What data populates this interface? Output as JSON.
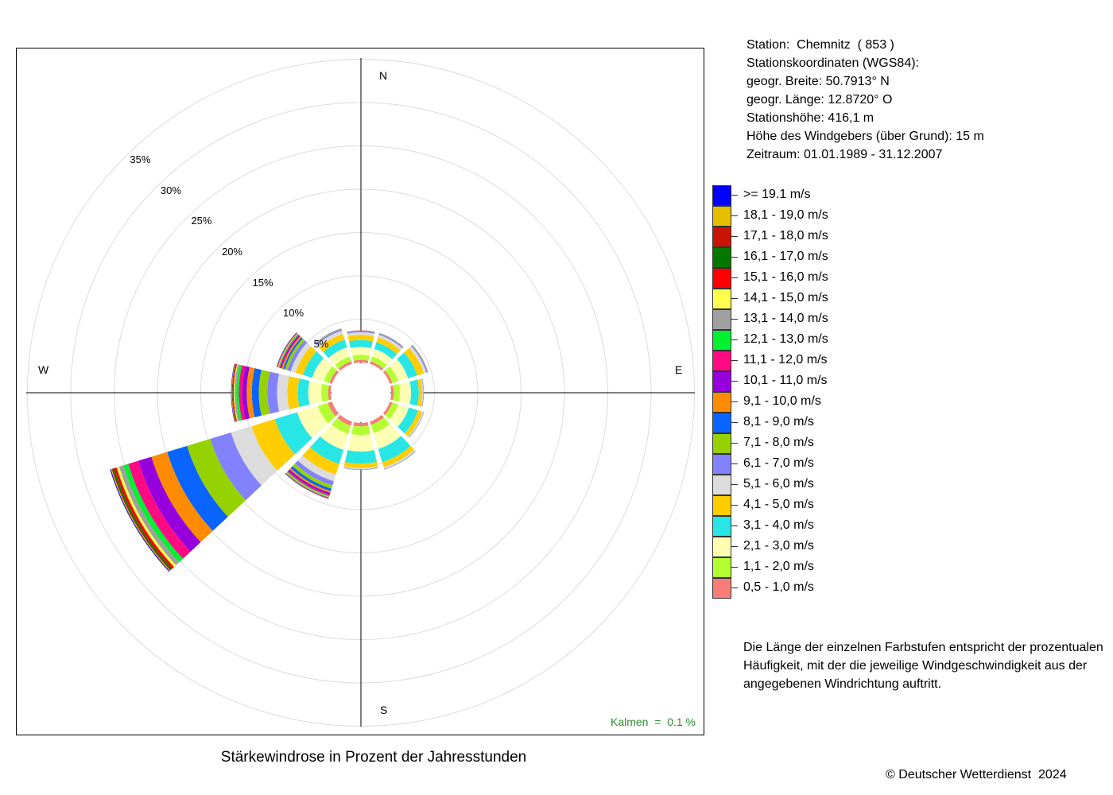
{
  "station": {
    "lines": [
      "Station:  Chemnitz  ( 853 )",
      "Stationskoordinaten (WGS84):",
      "geogr. Breite: 50.7913° N",
      "geogr. Länge: 12.8720° O",
      "Stationshöhe: 416,1 m",
      "Höhe des Windgebers (über Grund): 15 m",
      "Zeitraum: 01.01.1989 - 31.12.2007"
    ]
  },
  "title": "Stärkewindrose in Prozent der Jahresstunden",
  "calm_label": "Kalmen  =  0.1 %",
  "note": "Die Länge der einzelnen Farbstufen entspricht der prozentualen Häufigkeit, mit der die jeweilige Windgeschwindigkeit aus der angegebenen Windrichtung auftritt.",
  "copyright": "© Deutscher Wetterdienst  2024",
  "compass": {
    "n": "N",
    "e": "E",
    "s": "S",
    "w": "W"
  },
  "chart_data": {
    "type": "windrose",
    "unit": "%",
    "calm_percent": 0.1,
    "ring_labels": [
      "5%",
      "10%",
      "15%",
      "20%",
      "25%",
      "30%",
      "35%"
    ],
    "ring_values": [
      5,
      10,
      15,
      20,
      25,
      30,
      35
    ],
    "directions_deg": [
      0,
      30,
      60,
      90,
      120,
      150,
      180,
      210,
      240,
      270,
      300,
      330
    ],
    "classes": [
      {
        "label": "0,5 - 1,0 m/s",
        "color": "#f77d78"
      },
      {
        "label": "1,1 - 2,0 m/s",
        "color": "#b4ff32"
      },
      {
        "label": "2,1 - 3,0 m/s",
        "color": "#ffffb4"
      },
      {
        "label": "3,1 - 4,0 m/s",
        "color": "#28e6e6"
      },
      {
        "label": "4,1 - 5,0 m/s",
        "color": "#ffcd00"
      },
      {
        "label": "5,1 - 6,0 m/s",
        "color": "#dcdcdc"
      },
      {
        "label": "6,1 - 7,0 m/s",
        "color": "#8282ff"
      },
      {
        "label": "7,1 - 8,0 m/s",
        "color": "#96d200"
      },
      {
        "label": "8,1 - 9,0 m/s",
        "color": "#0a64ff"
      },
      {
        "label": "9,1 - 10,0 m/s",
        "color": "#ff8c00"
      },
      {
        "label": "10,1 - 11,0 m/s",
        "color": "#9600dc"
      },
      {
        "label": "11,1 - 12,0 m/s",
        "color": "#ff0a82"
      },
      {
        "label": "12,1 - 13,0 m/s",
        "color": "#00f032"
      },
      {
        "label": "13,1 - 14,0 m/s",
        "color": "#a0a0a0"
      },
      {
        "label": "14,1 - 15,0 m/s",
        "color": "#ffff50"
      },
      {
        "label": "15,1 - 16,0 m/s",
        "color": "#ff0000"
      },
      {
        "label": "16,1 - 17,0 m/s",
        "color": "#007800"
      },
      {
        "label": "17,1 - 18,0 m/s",
        "color": "#c81400"
      },
      {
        "label": "18,1 - 19,0 m/s",
        "color": "#e6be00"
      },
      {
        "label": ">= 19.1 m/s",
        "color": "#0000ff"
      }
    ],
    "series": [
      {
        "direction_deg": 0,
        "values": [
          0.3,
          0.6,
          0.9,
          0.8,
          0.6,
          0.3,
          0.1,
          0.05,
          0.03,
          0.02,
          0.01,
          0.01,
          0.01,
          0,
          0,
          0,
          0,
          0,
          0,
          0
        ]
      },
      {
        "direction_deg": 30,
        "values": [
          0.3,
          0.6,
          0.9,
          0.8,
          0.6,
          0.3,
          0.1,
          0.05,
          0.03,
          0.02,
          0.01,
          0.01,
          0,
          0,
          0,
          0,
          0,
          0,
          0,
          0
        ]
      },
      {
        "direction_deg": 60,
        "values": [
          0.3,
          0.7,
          1.2,
          1.1,
          0.8,
          0.3,
          0.1,
          0.05,
          0.03,
          0.02,
          0.01,
          0.01,
          0,
          0,
          0,
          0,
          0,
          0,
          0,
          0
        ]
      },
      {
        "direction_deg": 90,
        "values": [
          0.3,
          0.7,
          1.3,
          0.9,
          0.4,
          0.1,
          0.05,
          0.02,
          0.01,
          0,
          0,
          0,
          0,
          0,
          0,
          0,
          0,
          0,
          0,
          0
        ]
      },
      {
        "direction_deg": 120,
        "values": [
          0.3,
          0.7,
          1.3,
          1.1,
          0.5,
          0.15,
          0.05,
          0.02,
          0.01,
          0,
          0,
          0,
          0,
          0,
          0,
          0,
          0,
          0,
          0,
          0
        ]
      },
      {
        "direction_deg": 150,
        "values": [
          0.4,
          1.0,
          1.9,
          1.6,
          0.6,
          0.2,
          0.05,
          0.02,
          0.01,
          0,
          0,
          0,
          0,
          0,
          0,
          0,
          0,
          0,
          0,
          0
        ]
      },
      {
        "direction_deg": 180,
        "values": [
          0.4,
          1.0,
          1.9,
          1.4,
          0.5,
          0.15,
          0.05,
          0.02,
          0.01,
          0,
          0,
          0,
          0,
          0,
          0,
          0,
          0,
          0,
          0,
          0
        ]
      },
      {
        "direction_deg": 210,
        "values": [
          0.5,
          1.0,
          1.9,
          1.7,
          1.3,
          0.8,
          0.5,
          0.4,
          0.3,
          0.2,
          0.2,
          0.15,
          0.1,
          0.05,
          0.05,
          0.05,
          0.03,
          0.02,
          0.02,
          0.05
        ]
      },
      {
        "direction_deg": 240,
        "values": [
          0.5,
          1.2,
          2.5,
          2.7,
          2.8,
          2.5,
          2.5,
          2.8,
          2.4,
          1.9,
          1.6,
          1.2,
          0.6,
          0.5,
          0.3,
          0.3,
          0.2,
          0.1,
          0.1,
          0.1
        ]
      },
      {
        "direction_deg": 270,
        "values": [
          0.3,
          0.8,
          1.5,
          1.2,
          1.2,
          1.2,
          1.1,
          1.0,
          0.8,
          0.6,
          0.5,
          0.4,
          0.3,
          0.2,
          0.1,
          0.1,
          0.05,
          0.05,
          0.05,
          0.05
        ]
      },
      {
        "direction_deg": 300,
        "values": [
          0.3,
          0.7,
          1.4,
          1.1,
          0.9,
          0.6,
          0.4,
          0.3,
          0.2,
          0.2,
          0.15,
          0.1,
          0.1,
          0.05,
          0.05,
          0.05,
          0.02,
          0.02,
          0.02,
          0.05
        ]
      },
      {
        "direction_deg": 330,
        "values": [
          0.3,
          0.6,
          1.1,
          0.9,
          0.7,
          0.4,
          0.15,
          0.05,
          0.03,
          0.02,
          0.01,
          0.01,
          0.01,
          0,
          0,
          0,
          0,
          0,
          0,
          0
        ]
      }
    ]
  }
}
